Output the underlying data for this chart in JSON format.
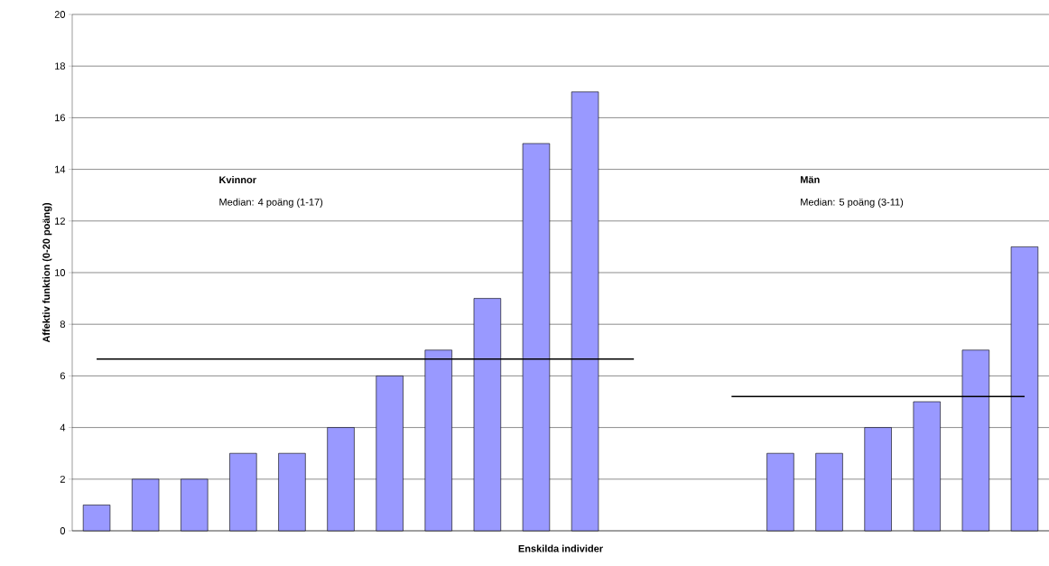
{
  "chart_data": {
    "type": "bar",
    "xlabel": "Enskilda individer",
    "ylabel": "Affektiv funktion (0-20 poäng)",
    "categories": [
      null,
      null,
      null,
      null,
      null,
      null,
      null,
      null,
      null,
      null,
      null,
      null,
      null,
      null,
      null,
      null,
      null,
      null,
      null,
      null
    ],
    "series": [
      {
        "color": "#9999ff",
        "values": [
          1,
          2,
          2,
          3,
          3,
          4,
          6,
          7,
          9,
          15,
          17,
          null,
          null,
          null,
          3,
          3,
          4,
          5,
          7,
          11
        ]
      },
      {
        "type": "line",
        "color": "#000000",
        "marker": "none",
        "values": [
          6.65,
          6.65,
          6.65,
          6.65,
          6.65,
          6.65,
          6.65,
          6.65,
          6.65,
          6.65,
          6.65,
          6.65,
          null,
          null,
          null,
          null,
          null,
          null,
          null,
          null
        ]
      },
      {
        "type": "line",
        "color": "#000000",
        "marker": "none",
        "values": [
          null,
          null,
          null,
          null,
          null,
          null,
          null,
          null,
          null,
          null,
          null,
          null,
          null,
          5.2,
          5.2,
          5.2,
          5.2,
          5.2,
          5.2,
          5.2
        ]
      }
    ],
    "annotations": [
      "Kvinnor",
      "Median: 4 poäng (1-17)",
      "Män",
      "Median: 5 poäng (3-11)"
    ],
    "ylim": [
      0,
      20
    ],
    "yticks": [
      0,
      2,
      4,
      6,
      8,
      10,
      12,
      14,
      16,
      18,
      20
    ],
    "grid": "y"
  }
}
